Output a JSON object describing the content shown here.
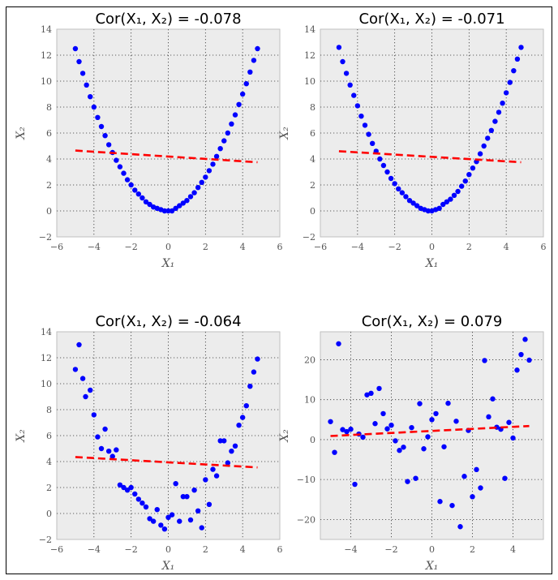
{
  "colors": {
    "background": "#ffffff",
    "plot_background": "#ececec",
    "points": "#0000ff",
    "trend": "#ff0000",
    "grid": "#333333"
  },
  "chart_data": [
    {
      "type": "scatter",
      "title": "Cor(X₁, X₂) = -0.078",
      "xlabel": "X₁",
      "ylabel": "X₂",
      "xlim": [
        -6,
        6
      ],
      "ylim": [
        -2,
        14
      ],
      "xticks": [
        -6,
        -4,
        -2,
        0,
        2,
        4,
        6
      ],
      "yticks": [
        -2,
        0,
        2,
        4,
        6,
        8,
        10,
        12,
        14
      ],
      "grid": true,
      "points": [
        [
          -5.0,
          12.5
        ],
        [
          -4.8,
          11.5
        ],
        [
          -4.6,
          10.6
        ],
        [
          -4.4,
          9.7
        ],
        [
          -4.2,
          8.8
        ],
        [
          -4.0,
          8.0
        ],
        [
          -3.8,
          7.2
        ],
        [
          -3.6,
          6.5
        ],
        [
          -3.4,
          5.8
        ],
        [
          -3.2,
          5.1
        ],
        [
          -3.0,
          4.5
        ],
        [
          -2.8,
          3.9
        ],
        [
          -2.6,
          3.4
        ],
        [
          -2.4,
          2.9
        ],
        [
          -2.2,
          2.4
        ],
        [
          -2.0,
          2.0
        ],
        [
          -1.8,
          1.6
        ],
        [
          -1.6,
          1.3
        ],
        [
          -1.4,
          1.0
        ],
        [
          -1.2,
          0.7
        ],
        [
          -1.0,
          0.5
        ],
        [
          -0.8,
          0.3
        ],
        [
          -0.6,
          0.2
        ],
        [
          -0.4,
          0.1
        ],
        [
          -0.2,
          0.0
        ],
        [
          0.0,
          0.0
        ],
        [
          0.2,
          0.0
        ],
        [
          0.4,
          0.2
        ],
        [
          0.6,
          0.4
        ],
        [
          0.8,
          0.6
        ],
        [
          1.0,
          0.8
        ],
        [
          1.2,
          1.1
        ],
        [
          1.4,
          1.4
        ],
        [
          1.6,
          1.8
        ],
        [
          1.8,
          2.2
        ],
        [
          2.0,
          2.6
        ],
        [
          2.2,
          3.1
        ],
        [
          2.4,
          3.6
        ],
        [
          2.6,
          4.2
        ],
        [
          2.8,
          4.8
        ],
        [
          3.0,
          5.4
        ],
        [
          3.2,
          6.0
        ],
        [
          3.4,
          6.7
        ],
        [
          3.6,
          7.4
        ],
        [
          3.8,
          8.2
        ],
        [
          4.0,
          9.0
        ],
        [
          4.2,
          9.8
        ],
        [
          4.4,
          10.7
        ],
        [
          4.6,
          11.6
        ],
        [
          4.8,
          12.5
        ]
      ],
      "trend": {
        "start": [
          -5.0,
          4.65
        ],
        "end": [
          4.8,
          3.75
        ]
      }
    },
    {
      "type": "scatter",
      "title": "Cor(X₁, X₂) = -0.071",
      "xlabel": "X₁",
      "ylabel": "X₂",
      "xlim": [
        -6,
        6
      ],
      "ylim": [
        -2,
        14
      ],
      "xticks": [
        -6,
        -4,
        -2,
        0,
        2,
        4,
        6
      ],
      "yticks": [
        -2,
        0,
        2,
        4,
        6,
        8,
        10,
        12,
        14
      ],
      "grid": true,
      "points": [
        [
          -5.0,
          12.6
        ],
        [
          -4.8,
          11.5
        ],
        [
          -4.6,
          10.6
        ],
        [
          -4.4,
          9.7
        ],
        [
          -4.2,
          8.9
        ],
        [
          -4.0,
          8.1
        ],
        [
          -3.8,
          7.3
        ],
        [
          -3.6,
          6.6
        ],
        [
          -3.4,
          5.9
        ],
        [
          -3.2,
          5.2
        ],
        [
          -3.0,
          4.6
        ],
        [
          -2.8,
          4.0
        ],
        [
          -2.6,
          3.5
        ],
        [
          -2.4,
          3.0
        ],
        [
          -2.2,
          2.5
        ],
        [
          -2.0,
          2.1
        ],
        [
          -1.8,
          1.7
        ],
        [
          -1.6,
          1.4
        ],
        [
          -1.4,
          1.1
        ],
        [
          -1.2,
          0.8
        ],
        [
          -1.0,
          0.6
        ],
        [
          -0.8,
          0.4
        ],
        [
          -0.6,
          0.2
        ],
        [
          -0.4,
          0.1
        ],
        [
          -0.2,
          0.0
        ],
        [
          0.0,
          0.0
        ],
        [
          0.2,
          0.1
        ],
        [
          0.4,
          0.2
        ],
        [
          0.6,
          0.5
        ],
        [
          0.8,
          0.7
        ],
        [
          1.0,
          0.9
        ],
        [
          1.2,
          1.2
        ],
        [
          1.4,
          1.5
        ],
        [
          1.6,
          1.9
        ],
        [
          1.8,
          2.3
        ],
        [
          2.0,
          2.8
        ],
        [
          2.2,
          3.3
        ],
        [
          2.4,
          3.8
        ],
        [
          2.6,
          4.4
        ],
        [
          2.8,
          5.0
        ],
        [
          3.0,
          5.6
        ],
        [
          3.2,
          6.2
        ],
        [
          3.4,
          6.9
        ],
        [
          3.6,
          7.6
        ],
        [
          3.8,
          8.3
        ],
        [
          4.0,
          9.1
        ],
        [
          4.2,
          9.9
        ],
        [
          4.4,
          10.8
        ],
        [
          4.6,
          11.7
        ],
        [
          4.8,
          12.6
        ]
      ],
      "trend": {
        "start": [
          -5.0,
          4.6
        ],
        "end": [
          4.8,
          3.75
        ]
      }
    },
    {
      "type": "scatter",
      "title": "Cor(X₁, X₂) = -0.064",
      "xlabel": "X₁",
      "ylabel": "X₂",
      "xlim": [
        -6,
        6
      ],
      "ylim": [
        -2,
        14
      ],
      "xticks": [
        -6,
        -4,
        -2,
        0,
        2,
        4,
        6
      ],
      "yticks": [
        -2,
        0,
        2,
        4,
        6,
        8,
        10,
        12,
        14
      ],
      "grid": true,
      "points": [
        [
          -5.0,
          11.1
        ],
        [
          -4.8,
          13.0
        ],
        [
          -4.6,
          10.4
        ],
        [
          -4.45,
          9.0
        ],
        [
          -4.2,
          9.5
        ],
        [
          -4.0,
          7.6
        ],
        [
          -3.8,
          5.9
        ],
        [
          -3.6,
          5.0
        ],
        [
          -3.4,
          6.5
        ],
        [
          -3.2,
          4.8
        ],
        [
          -3.0,
          4.4
        ],
        [
          -2.8,
          4.9
        ],
        [
          -2.6,
          2.2
        ],
        [
          -2.4,
          2.0
        ],
        [
          -2.2,
          1.8
        ],
        [
          -2.0,
          2.0
        ],
        [
          -1.8,
          1.5
        ],
        [
          -1.6,
          1.1
        ],
        [
          -1.4,
          0.8
        ],
        [
          -1.2,
          0.5
        ],
        [
          -1.0,
          -0.4
        ],
        [
          -0.8,
          -0.6
        ],
        [
          -0.6,
          0.3
        ],
        [
          -0.4,
          -0.9
        ],
        [
          -0.2,
          -1.2
        ],
        [
          0.0,
          -0.3
        ],
        [
          0.2,
          -0.1
        ],
        [
          0.4,
          2.3
        ],
        [
          0.6,
          -0.6
        ],
        [
          0.8,
          1.3
        ],
        [
          1.0,
          1.3
        ],
        [
          1.2,
          -0.5
        ],
        [
          1.4,
          1.8
        ],
        [
          1.6,
          0.2
        ],
        [
          1.8,
          -1.1
        ],
        [
          2.0,
          2.6
        ],
        [
          2.2,
          0.7
        ],
        [
          2.4,
          3.4
        ],
        [
          2.6,
          2.9
        ],
        [
          2.8,
          5.6
        ],
        [
          3.0,
          5.6
        ],
        [
          3.2,
          3.9
        ],
        [
          3.4,
          4.8
        ],
        [
          3.6,
          5.2
        ],
        [
          3.8,
          6.8
        ],
        [
          4.0,
          7.4
        ],
        [
          4.2,
          8.3
        ],
        [
          4.4,
          9.8
        ],
        [
          4.6,
          10.9
        ],
        [
          4.8,
          11.9
        ]
      ],
      "trend": {
        "start": [
          -5.0,
          4.35
        ],
        "end": [
          4.8,
          3.55
        ]
      }
    },
    {
      "type": "scatter",
      "title": "Cor(X₁, X₂) = 0.079",
      "xlabel": "X₁",
      "ylabel": "X₂",
      "xlim": [
        -5.5,
        5.5
      ],
      "ylim": [
        -25,
        27
      ],
      "xticks": [
        -4,
        -2,
        0,
        2,
        4
      ],
      "yticks": [
        -20,
        -10,
        0,
        10,
        20
      ],
      "grid": true,
      "points": [
        [
          -5.0,
          4.5
        ],
        [
          -4.8,
          -3.2
        ],
        [
          -4.6,
          24.0
        ],
        [
          -4.4,
          2.5
        ],
        [
          -4.2,
          2.0
        ],
        [
          -4.0,
          2.6
        ],
        [
          -3.8,
          -11.2
        ],
        [
          -3.6,
          1.4
        ],
        [
          -3.4,
          0.6
        ],
        [
          -3.2,
          11.2
        ],
        [
          -3.0,
          11.6
        ],
        [
          -2.8,
          4.0
        ],
        [
          -2.6,
          12.8
        ],
        [
          -2.4,
          6.5
        ],
        [
          -2.2,
          2.7
        ],
        [
          -2.0,
          3.6
        ],
        [
          -1.8,
          -0.3
        ],
        [
          -1.6,
          -2.7
        ],
        [
          -1.4,
          -1.9
        ],
        [
          -1.2,
          -10.5
        ],
        [
          -1.0,
          3.0
        ],
        [
          -0.8,
          -9.7
        ],
        [
          -0.6,
          9.0
        ],
        [
          -0.4,
          -2.3
        ],
        [
          -0.2,
          0.7
        ],
        [
          0.0,
          5.0
        ],
        [
          0.2,
          6.5
        ],
        [
          0.4,
          -15.5
        ],
        [
          0.6,
          -1.8
        ],
        [
          0.8,
          9.1
        ],
        [
          1.0,
          -16.5
        ],
        [
          1.2,
          4.6
        ],
        [
          1.4,
          -21.8
        ],
        [
          1.6,
          -9.2
        ],
        [
          1.8,
          2.3
        ],
        [
          2.0,
          -14.3
        ],
        [
          2.2,
          -7.5
        ],
        [
          2.4,
          -12.1
        ],
        [
          2.6,
          19.8
        ],
        [
          2.8,
          5.7
        ],
        [
          3.0,
          10.2
        ],
        [
          3.2,
          3.1
        ],
        [
          3.4,
          2.6
        ],
        [
          3.6,
          -9.7
        ],
        [
          3.8,
          4.3
        ],
        [
          4.0,
          0.4
        ],
        [
          4.2,
          17.4
        ],
        [
          4.4,
          21.3
        ],
        [
          4.6,
          25.1
        ],
        [
          4.8,
          19.9
        ]
      ],
      "trend": {
        "start": [
          -5.0,
          0.9
        ],
        "end": [
          4.8,
          3.4
        ]
      }
    }
  ]
}
